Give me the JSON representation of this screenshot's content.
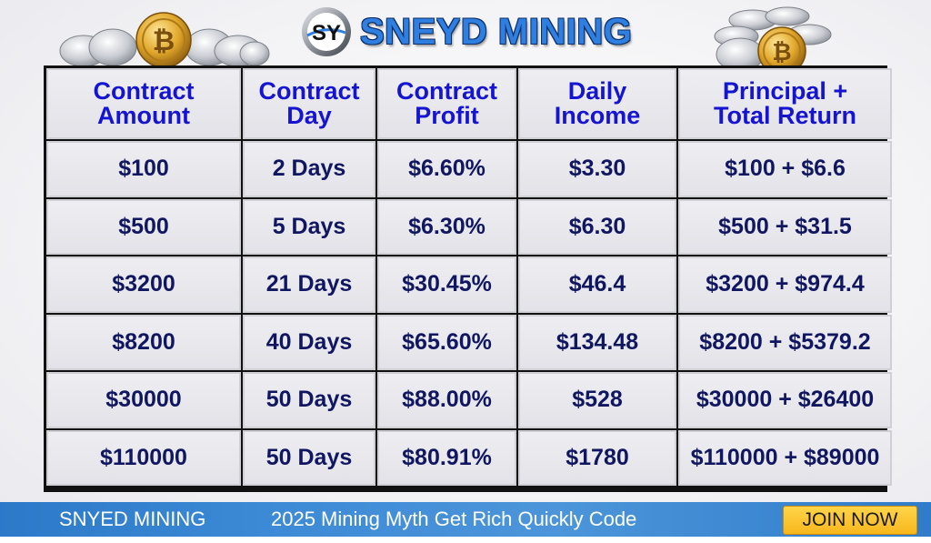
{
  "brand": {
    "logo_mark": "SY",
    "title": "SNEYD MINING",
    "colors": {
      "title": "#2f7fe0",
      "outline": "#0d2e66"
    }
  },
  "decor": {
    "left_coins": "crypto-coins-cluster-icon",
    "right_coins": "crypto-coins-stack-icon"
  },
  "table": {
    "headers": [
      "Contract\nAmount",
      "Contract\nDay",
      "Contract\nProfit",
      "Daily\nIncome",
      "Principal +\nTotal Return"
    ],
    "rows": [
      [
        "$100",
        "2 Days",
        "$6.60%",
        "$3.30",
        "$100 + $6.6"
      ],
      [
        "$500",
        "5 Days",
        "$6.30%",
        "$6.30",
        "$500 + $31.5"
      ],
      [
        "$3200",
        "21 Days",
        "$30.45%",
        "$46.4",
        "$3200 + $974.4"
      ],
      [
        "$8200",
        "40 Days",
        "$65.60%",
        "$134.48",
        "$8200 + $5379.2"
      ],
      [
        "$30000",
        "50 Days",
        "$88.00%",
        "$528",
        "$30000 + $26400"
      ],
      [
        "$110000",
        "50 Days",
        "$80.91%",
        "$1780",
        "$110000 + $89000"
      ]
    ],
    "colors": {
      "header_text": "#1414d2",
      "cell_text": "#0c1260",
      "border": "#111111"
    }
  },
  "footer": {
    "brand": "SNYED MINING",
    "tagline": "2025 Mining Myth Get Rich Quickly Code",
    "cta": "JOIN NOW",
    "colors": {
      "bar": "#3d8ad6",
      "cta": "#f7b71c"
    }
  }
}
